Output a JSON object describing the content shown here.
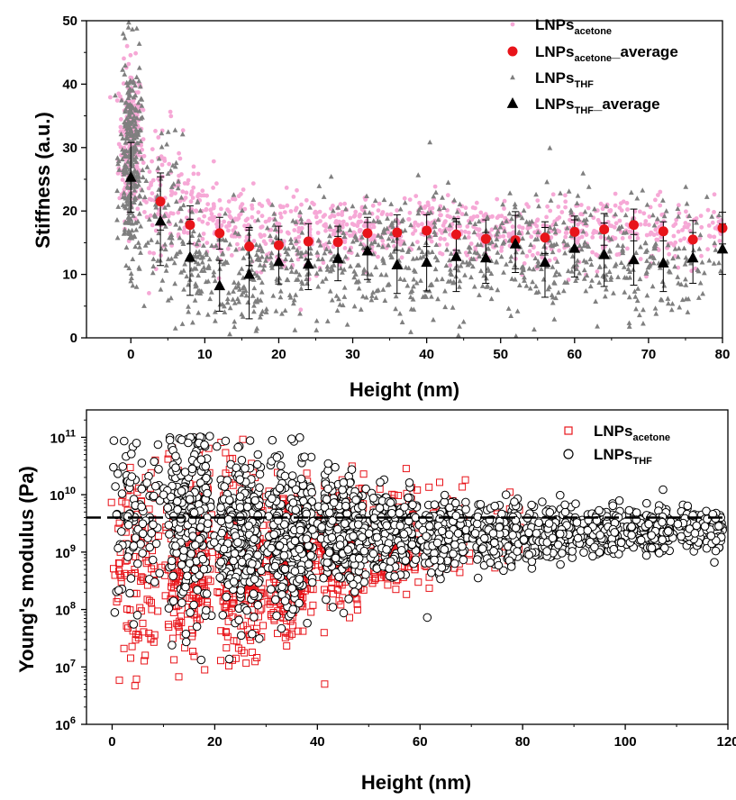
{
  "colors": {
    "acetone_points": "#f6a8d6",
    "acetone_average": "#e8141a",
    "thf_points": "#7f7f7f",
    "thf_average": "#000000",
    "acetone_open_squares": "#e8141a",
    "thf_open_circles": "#000000",
    "axis": "#000000"
  },
  "chart_data": [
    {
      "type": "scatter",
      "xlabel": "Height (nm)",
      "ylabel": "Stiffness (a.u.)",
      "xlim": [
        -6,
        80
      ],
      "ylim": [
        0,
        50
      ],
      "xticks": [
        0,
        10,
        20,
        30,
        40,
        50,
        60,
        70,
        80
      ],
      "yticks": [
        0,
        10,
        20,
        30,
        40,
        50
      ],
      "legend_position": "top-right",
      "series": [
        {
          "name": "LNPs",
          "name_sub": "acetone",
          "marker": "small-circle",
          "color": "#f6a8d6",
          "clusters": [
            [
              0,
              31,
              6,
              0.8,
              220
            ],
            [
              4,
              24,
              5,
              1.5,
              70
            ],
            [
              8,
              20,
              3,
              1.8,
              60
            ],
            [
              12,
              18,
              3,
              1.8,
              55
            ],
            [
              16,
              17,
              3,
              1.8,
              55
            ],
            [
              20,
              16.5,
              3,
              1.8,
              55
            ],
            [
              24,
              16.5,
              3,
              1.8,
              55
            ],
            [
              28,
              17,
              2.5,
              1.8,
              55
            ],
            [
              32,
              17.5,
              2.5,
              1.8,
              55
            ],
            [
              36,
              17.5,
              2.5,
              1.8,
              50
            ],
            [
              40,
              18,
              2.5,
              1.8,
              50
            ],
            [
              44,
              17,
              2.5,
              1.8,
              50
            ],
            [
              48,
              16.5,
              2.5,
              1.8,
              50
            ],
            [
              52,
              16.5,
              2.5,
              1.8,
              45
            ],
            [
              56,
              16.5,
              2.5,
              1.8,
              45
            ],
            [
              60,
              17,
              2.5,
              1.8,
              45
            ],
            [
              64,
              17,
              2.5,
              1.8,
              45
            ],
            [
              68,
              17.5,
              2.5,
              1.8,
              40
            ],
            [
              72,
              17,
              2.5,
              1.8,
              40
            ],
            [
              76,
              16.5,
              2.5,
              1.8,
              35
            ],
            [
              80,
              17,
              2.5,
              1.0,
              25
            ]
          ]
        },
        {
          "name": "LNPs",
          "name_sub": "acetone",
          "name_suffix": "_average",
          "marker": "filled-circle",
          "color": "#e8141a",
          "x": [
            4,
            8,
            12,
            16,
            20,
            24,
            28,
            32,
            36,
            40,
            44,
            48,
            52,
            56,
            60,
            64,
            68,
            72,
            76,
            80
          ],
          "y": [
            21.5,
            17.8,
            16.5,
            14.4,
            14.6,
            15.2,
            15.1,
            16.5,
            16.6,
            16.9,
            16.3,
            15.6,
            15.4,
            15.8,
            16.7,
            17.1,
            17.8,
            16.8,
            15.5,
            17.3
          ],
          "err": [
            4.5,
            3.0,
            2.5,
            3.0,
            3.0,
            2.8,
            2.5,
            2.5,
            2.8,
            2.5,
            2.5,
            3.0,
            4.5,
            2.5,
            2.5,
            2.5,
            2.5,
            1.5,
            3.0,
            2.5
          ]
        },
        {
          "name": "LNPs",
          "name_sub": "THF",
          "marker": "small-triangle",
          "color": "#7f7f7f",
          "clusters": [
            [
              0,
              28,
              8,
              0.7,
              300
            ],
            [
              4,
              18,
              7,
              1.5,
              70
            ],
            [
              8,
              13,
              5,
              1.8,
              65
            ],
            [
              12,
              9,
              5,
              1.8,
              60
            ],
            [
              16,
              10,
              6,
              1.8,
              60
            ],
            [
              20,
              12,
              5,
              1.8,
              60
            ],
            [
              24,
              12,
              5,
              1.8,
              55
            ],
            [
              28,
              13,
              5,
              1.8,
              55
            ],
            [
              32,
              14,
              5,
              1.8,
              55
            ],
            [
              36,
              12,
              5,
              1.8,
              55
            ],
            [
              40,
              12,
              5,
              1.8,
              55
            ],
            [
              44,
              13,
              5,
              1.8,
              55
            ],
            [
              48,
              13,
              5,
              1.8,
              50
            ],
            [
              52,
              15,
              5,
              1.8,
              50
            ],
            [
              56,
              12,
              5,
              1.8,
              50
            ],
            [
              60,
              14,
              5,
              1.8,
              50
            ],
            [
              64,
              13,
              5,
              1.8,
              45
            ],
            [
              68,
              12,
              5,
              1.8,
              45
            ],
            [
              72,
              12,
              5,
              1.8,
              40
            ],
            [
              76,
              13,
              5,
              1.8,
              35
            ],
            [
              80,
              14,
              4,
              1.0,
              20
            ]
          ]
        },
        {
          "name": "LNPs",
          "name_sub": "THF",
          "name_suffix": "_average",
          "marker": "filled-triangle",
          "color": "#000000",
          "x": [
            0,
            4,
            8,
            12,
            16,
            20,
            24,
            28,
            32,
            36,
            40,
            44,
            48,
            52,
            56,
            60,
            64,
            68,
            72,
            76,
            80
          ],
          "y": [
            25.3,
            18.4,
            12.7,
            8.2,
            10.0,
            12.0,
            11.6,
            12.5,
            13.7,
            11.5,
            11.9,
            12.8,
            12.6,
            14.8,
            11.9,
            14.1,
            13.1,
            12.3,
            11.8,
            12.6,
            14.0
          ],
          "err": [
            5.5,
            7.0,
            6.0,
            4.0,
            7.0,
            3.5,
            4.0,
            3.5,
            4.5,
            4.5,
            4.5,
            5.5,
            4.0,
            4.5,
            5.5,
            4.5,
            5.0,
            4.0,
            4.5,
            4.0,
            4.0
          ]
        }
      ]
    },
    {
      "type": "scatter",
      "xlabel": "Height (nm)",
      "ylabel": "Young's modulus (Pa)",
      "xlim": [
        -5,
        120
      ],
      "ylim": [
        1000000,
        300000000000
      ],
      "yscale": "log",
      "xticks": [
        0,
        20,
        40,
        60,
        80,
        100,
        120
      ],
      "yticks": [
        1000000,
        10000000,
        100000000,
        1000000000,
        10000000000,
        100000000000
      ],
      "ytick_labels": [
        {
          "base": "10",
          "exp": "6"
        },
        {
          "base": "10",
          "exp": "7"
        },
        {
          "base": "10",
          "exp": "8"
        },
        {
          "base": "10",
          "exp": "9"
        },
        {
          "base": "10",
          "exp": "10"
        },
        {
          "base": "10",
          "exp": "11"
        }
      ],
      "reference_line_y": 4000000000,
      "legend_position": "top-right",
      "series": [
        {
          "name": "LNPs",
          "name_sub": "acetone",
          "marker": "open-square",
          "color": "#e8141a",
          "clusters": [
            [
              5,
              8.8,
              0.9,
              4,
              120
            ],
            [
              15,
              9.0,
              0.8,
              4,
              260
            ],
            [
              25,
              8.8,
              0.7,
              4,
              320
            ],
            [
              35,
              8.9,
              0.6,
              4,
              330
            ],
            [
              45,
              9.1,
              0.5,
              4,
              270
            ],
            [
              55,
              9.2,
              0.4,
              4,
              170
            ],
            [
              65,
              9.3,
              0.35,
              4,
              90
            ],
            [
              75,
              9.3,
              0.3,
              4,
              40
            ]
          ]
        },
        {
          "name": "LNPs",
          "name_sub": "THF",
          "marker": "open-circle",
          "color": "#000000",
          "clusters": [
            [
              5,
              9.6,
              0.7,
              4,
              90
            ],
            [
              15,
              9.5,
              0.8,
              4,
              230
            ],
            [
              25,
              9.3,
              0.7,
              4,
              280
            ],
            [
              35,
              9.3,
              0.6,
              4,
              300
            ],
            [
              45,
              9.3,
              0.45,
              4,
              270
            ],
            [
              55,
              9.35,
              0.35,
              4,
              230
            ],
            [
              65,
              9.3,
              0.3,
              4,
              210
            ],
            [
              75,
              9.3,
              0.25,
              4,
              200
            ],
            [
              85,
              9.3,
              0.22,
              4,
              190
            ],
            [
              95,
              9.35,
              0.2,
              4,
              180
            ],
            [
              105,
              9.4,
              0.18,
              4,
              170
            ],
            [
              115,
              9.4,
              0.17,
              4,
              150
            ]
          ]
        }
      ]
    }
  ]
}
